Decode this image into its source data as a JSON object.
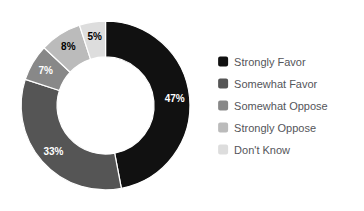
{
  "chart_data": {
    "type": "donut",
    "categories": [
      "Strongly Favor",
      "Somewhat Favor",
      "Somewhat Oppose",
      "Strongly Oppose",
      "Don't Know"
    ],
    "values": [
      47,
      33,
      7,
      8,
      5
    ],
    "value_labels": [
      "47%",
      "33%",
      "7%",
      "8%",
      "5%"
    ],
    "colors": [
      "#111111",
      "#555555",
      "#888888",
      "#bbbbbb",
      "#dddddd"
    ],
    "data_labels": true,
    "legend": "right"
  }
}
